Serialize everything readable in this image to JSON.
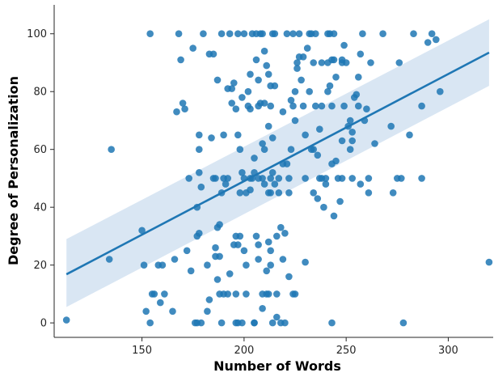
{
  "chart_data": {
    "type": "scatter",
    "title": "",
    "xlabel": "Number of Words",
    "ylabel": "Degree of Personalization",
    "xlim": [
      107,
      322
    ],
    "ylim": [
      -5,
      110
    ],
    "xticks": [
      150,
      200,
      250,
      300
    ],
    "yticks": [
      0,
      20,
      40,
      60,
      80,
      100
    ],
    "grid": false,
    "colors": {
      "points": "#1f77b4",
      "line": "#1f77b4",
      "band": "#c9dcee",
      "axis": "#262626"
    },
    "regression": {
      "x": [
        113,
        320
      ],
      "y": [
        16.8,
        93.5
      ],
      "ci_lower": [
        5.5,
        82
      ],
      "ci_upper": [
        29,
        105
      ]
    },
    "points": [
      [
        113,
        1
      ],
      [
        134,
        22
      ],
      [
        135,
        60
      ],
      [
        150,
        32
      ],
      [
        151,
        20
      ],
      [
        152,
        4
      ],
      [
        154,
        0
      ],
      [
        154,
        100
      ],
      [
        155,
        10
      ],
      [
        156,
        10
      ],
      [
        158,
        20
      ],
      [
        159,
        7
      ],
      [
        160,
        20
      ],
      [
        161,
        10
      ],
      [
        165,
        4
      ],
      [
        166,
        22
      ],
      [
        167,
        73
      ],
      [
        168,
        100
      ],
      [
        169,
        91
      ],
      [
        170,
        76
      ],
      [
        171,
        74
      ],
      [
        172,
        25
      ],
      [
        173,
        50
      ],
      [
        174,
        18
      ],
      [
        175,
        95
      ],
      [
        176,
        0
      ],
      [
        177,
        0
      ],
      [
        177,
        40
      ],
      [
        177,
        30
      ],
      [
        178,
        60
      ],
      [
        178,
        65
      ],
      [
        178,
        52
      ],
      [
        178,
        31
      ],
      [
        179,
        0
      ],
      [
        179,
        47
      ],
      [
        180,
        100
      ],
      [
        182,
        4
      ],
      [
        182,
        20
      ],
      [
        183,
        8
      ],
      [
        183,
        93
      ],
      [
        184,
        64
      ],
      [
        185,
        93
      ],
      [
        185,
        50
      ],
      [
        186,
        26
      ],
      [
        186,
        23
      ],
      [
        186,
        50
      ],
      [
        187,
        84
      ],
      [
        187,
        15
      ],
      [
        187,
        33
      ],
      [
        188,
        10
      ],
      [
        188,
        34
      ],
      [
        188,
        23
      ],
      [
        189,
        0
      ],
      [
        189,
        45
      ],
      [
        189,
        100
      ],
      [
        190,
        10
      ],
      [
        190,
        65
      ],
      [
        190,
        50
      ],
      [
        191,
        48
      ],
      [
        192,
        81
      ],
      [
        192,
        10
      ],
      [
        192,
        50
      ],
      [
        193,
        17
      ],
      [
        193,
        100
      ],
      [
        194,
        76
      ],
      [
        194,
        81
      ],
      [
        195,
        83
      ],
      [
        195,
        27
      ],
      [
        196,
        30
      ],
      [
        196,
        10
      ],
      [
        196,
        0
      ],
      [
        196,
        74
      ],
      [
        197,
        27
      ],
      [
        197,
        0
      ],
      [
        197,
        100
      ],
      [
        197,
        65
      ],
      [
        198,
        60
      ],
      [
        198,
        45
      ],
      [
        198,
        30
      ],
      [
        199,
        52
      ],
      [
        199,
        78
      ],
      [
        199,
        0
      ],
      [
        200,
        100
      ],
      [
        200,
        25
      ],
      [
        200,
        50
      ],
      [
        201,
        45
      ],
      [
        201,
        10
      ],
      [
        201,
        20
      ],
      [
        202,
        80
      ],
      [
        202,
        75
      ],
      [
        203,
        86
      ],
      [
        203,
        74
      ],
      [
        203,
        50
      ],
      [
        203,
        46
      ],
      [
        204,
        50
      ],
      [
        204,
        100
      ],
      [
        205,
        0
      ],
      [
        205,
        0
      ],
      [
        205,
        52
      ],
      [
        205,
        57
      ],
      [
        206,
        100
      ],
      [
        206,
        91
      ],
      [
        206,
        30
      ],
      [
        207,
        84
      ],
      [
        207,
        75
      ],
      [
        207,
        50
      ],
      [
        207,
        27
      ],
      [
        207,
        22
      ],
      [
        208,
        100
      ],
      [
        208,
        76
      ],
      [
        209,
        100
      ],
      [
        209,
        62
      ],
      [
        209,
        50
      ],
      [
        209,
        10
      ],
      [
        209,
        5
      ],
      [
        210,
        94
      ],
      [
        210,
        76
      ],
      [
        210,
        60
      ],
      [
        210,
        48
      ],
      [
        211,
        89
      ],
      [
        211,
        18
      ],
      [
        211,
        10
      ],
      [
        212,
        86
      ],
      [
        212,
        68
      ],
      [
        212,
        45
      ],
      [
        212,
        28
      ],
      [
        212,
        10
      ],
      [
        213,
        82
      ],
      [
        213,
        75
      ],
      [
        213,
        50
      ],
      [
        213,
        45
      ],
      [
        213,
        25
      ],
      [
        213,
        20
      ],
      [
        214,
        100
      ],
      [
        214,
        64
      ],
      [
        214,
        52
      ],
      [
        214,
        0
      ],
      [
        215,
        100
      ],
      [
        215,
        82
      ],
      [
        215,
        48
      ],
      [
        216,
        30
      ],
      [
        216,
        10
      ],
      [
        216,
        2
      ],
      [
        217,
        50
      ],
      [
        217,
        45
      ],
      [
        218,
        0
      ],
      [
        218,
        33
      ],
      [
        219,
        73
      ],
      [
        219,
        22
      ],
      [
        219,
        55
      ],
      [
        220,
        31
      ],
      [
        220,
        0
      ],
      [
        221,
        55
      ],
      [
        221,
        100
      ],
      [
        222,
        50
      ],
      [
        222,
        45
      ],
      [
        222,
        16
      ],
      [
        223,
        77
      ],
      [
        223,
        60
      ],
      [
        224,
        75
      ],
      [
        224,
        100
      ],
      [
        224,
        10
      ],
      [
        225,
        80
      ],
      [
        225,
        70
      ],
      [
        225,
        10
      ],
      [
        226,
        88
      ],
      [
        226,
        90
      ],
      [
        227,
        100
      ],
      [
        227,
        92
      ],
      [
        228,
        84
      ],
      [
        229,
        92
      ],
      [
        229,
        75
      ],
      [
        230,
        50
      ],
      [
        230,
        65
      ],
      [
        230,
        21
      ],
      [
        231,
        95
      ],
      [
        232,
        80
      ],
      [
        232,
        100
      ],
      [
        233,
        100
      ],
      [
        233,
        60
      ],
      [
        234,
        90
      ],
      [
        234,
        60
      ],
      [
        234,
        45
      ],
      [
        235,
        100
      ],
      [
        235,
        75
      ],
      [
        236,
        58
      ],
      [
        236,
        43
      ],
      [
        237,
        67
      ],
      [
        237,
        50
      ],
      [
        238,
        75
      ],
      [
        238,
        90
      ],
      [
        238,
        50
      ],
      [
        239,
        40
      ],
      [
        240,
        48
      ],
      [
        240,
        50
      ],
      [
        241,
        100
      ],
      [
        241,
        80
      ],
      [
        241,
        90
      ],
      [
        242,
        100
      ],
      [
        242,
        82
      ],
      [
        243,
        91
      ],
      [
        243,
        75
      ],
      [
        243,
        55
      ],
      [
        243,
        0
      ],
      [
        244,
        100
      ],
      [
        244,
        91
      ],
      [
        244,
        37
      ],
      [
        245,
        56
      ],
      [
        245,
        85
      ],
      [
        246,
        50
      ],
      [
        247,
        42
      ],
      [
        248,
        90
      ],
      [
        248,
        91
      ],
      [
        248,
        63
      ],
      [
        248,
        50
      ],
      [
        249,
        75
      ],
      [
        249,
        96
      ],
      [
        250,
        90
      ],
      [
        251,
        68
      ],
      [
        252,
        60
      ],
      [
        252,
        70
      ],
      [
        253,
        66
      ],
      [
        253,
        63
      ],
      [
        253,
        50
      ],
      [
        254,
        78
      ],
      [
        255,
        79
      ],
      [
        256,
        75
      ],
      [
        256,
        85
      ],
      [
        257,
        93
      ],
      [
        257,
        48
      ],
      [
        258,
        100
      ],
      [
        259,
        70
      ],
      [
        260,
        74
      ],
      [
        261,
        50
      ],
      [
        261,
        45
      ],
      [
        262,
        90
      ],
      [
        264,
        62
      ],
      [
        268,
        100
      ],
      [
        272,
        68
      ],
      [
        273,
        45
      ],
      [
        275,
        50
      ],
      [
        276,
        90
      ],
      [
        277,
        50
      ],
      [
        278,
        0
      ],
      [
        281,
        65
      ],
      [
        283,
        100
      ],
      [
        287,
        75
      ],
      [
        287,
        50
      ],
      [
        290,
        97
      ],
      [
        292,
        100
      ],
      [
        294,
        98
      ],
      [
        296,
        80
      ],
      [
        320,
        21
      ]
    ]
  }
}
